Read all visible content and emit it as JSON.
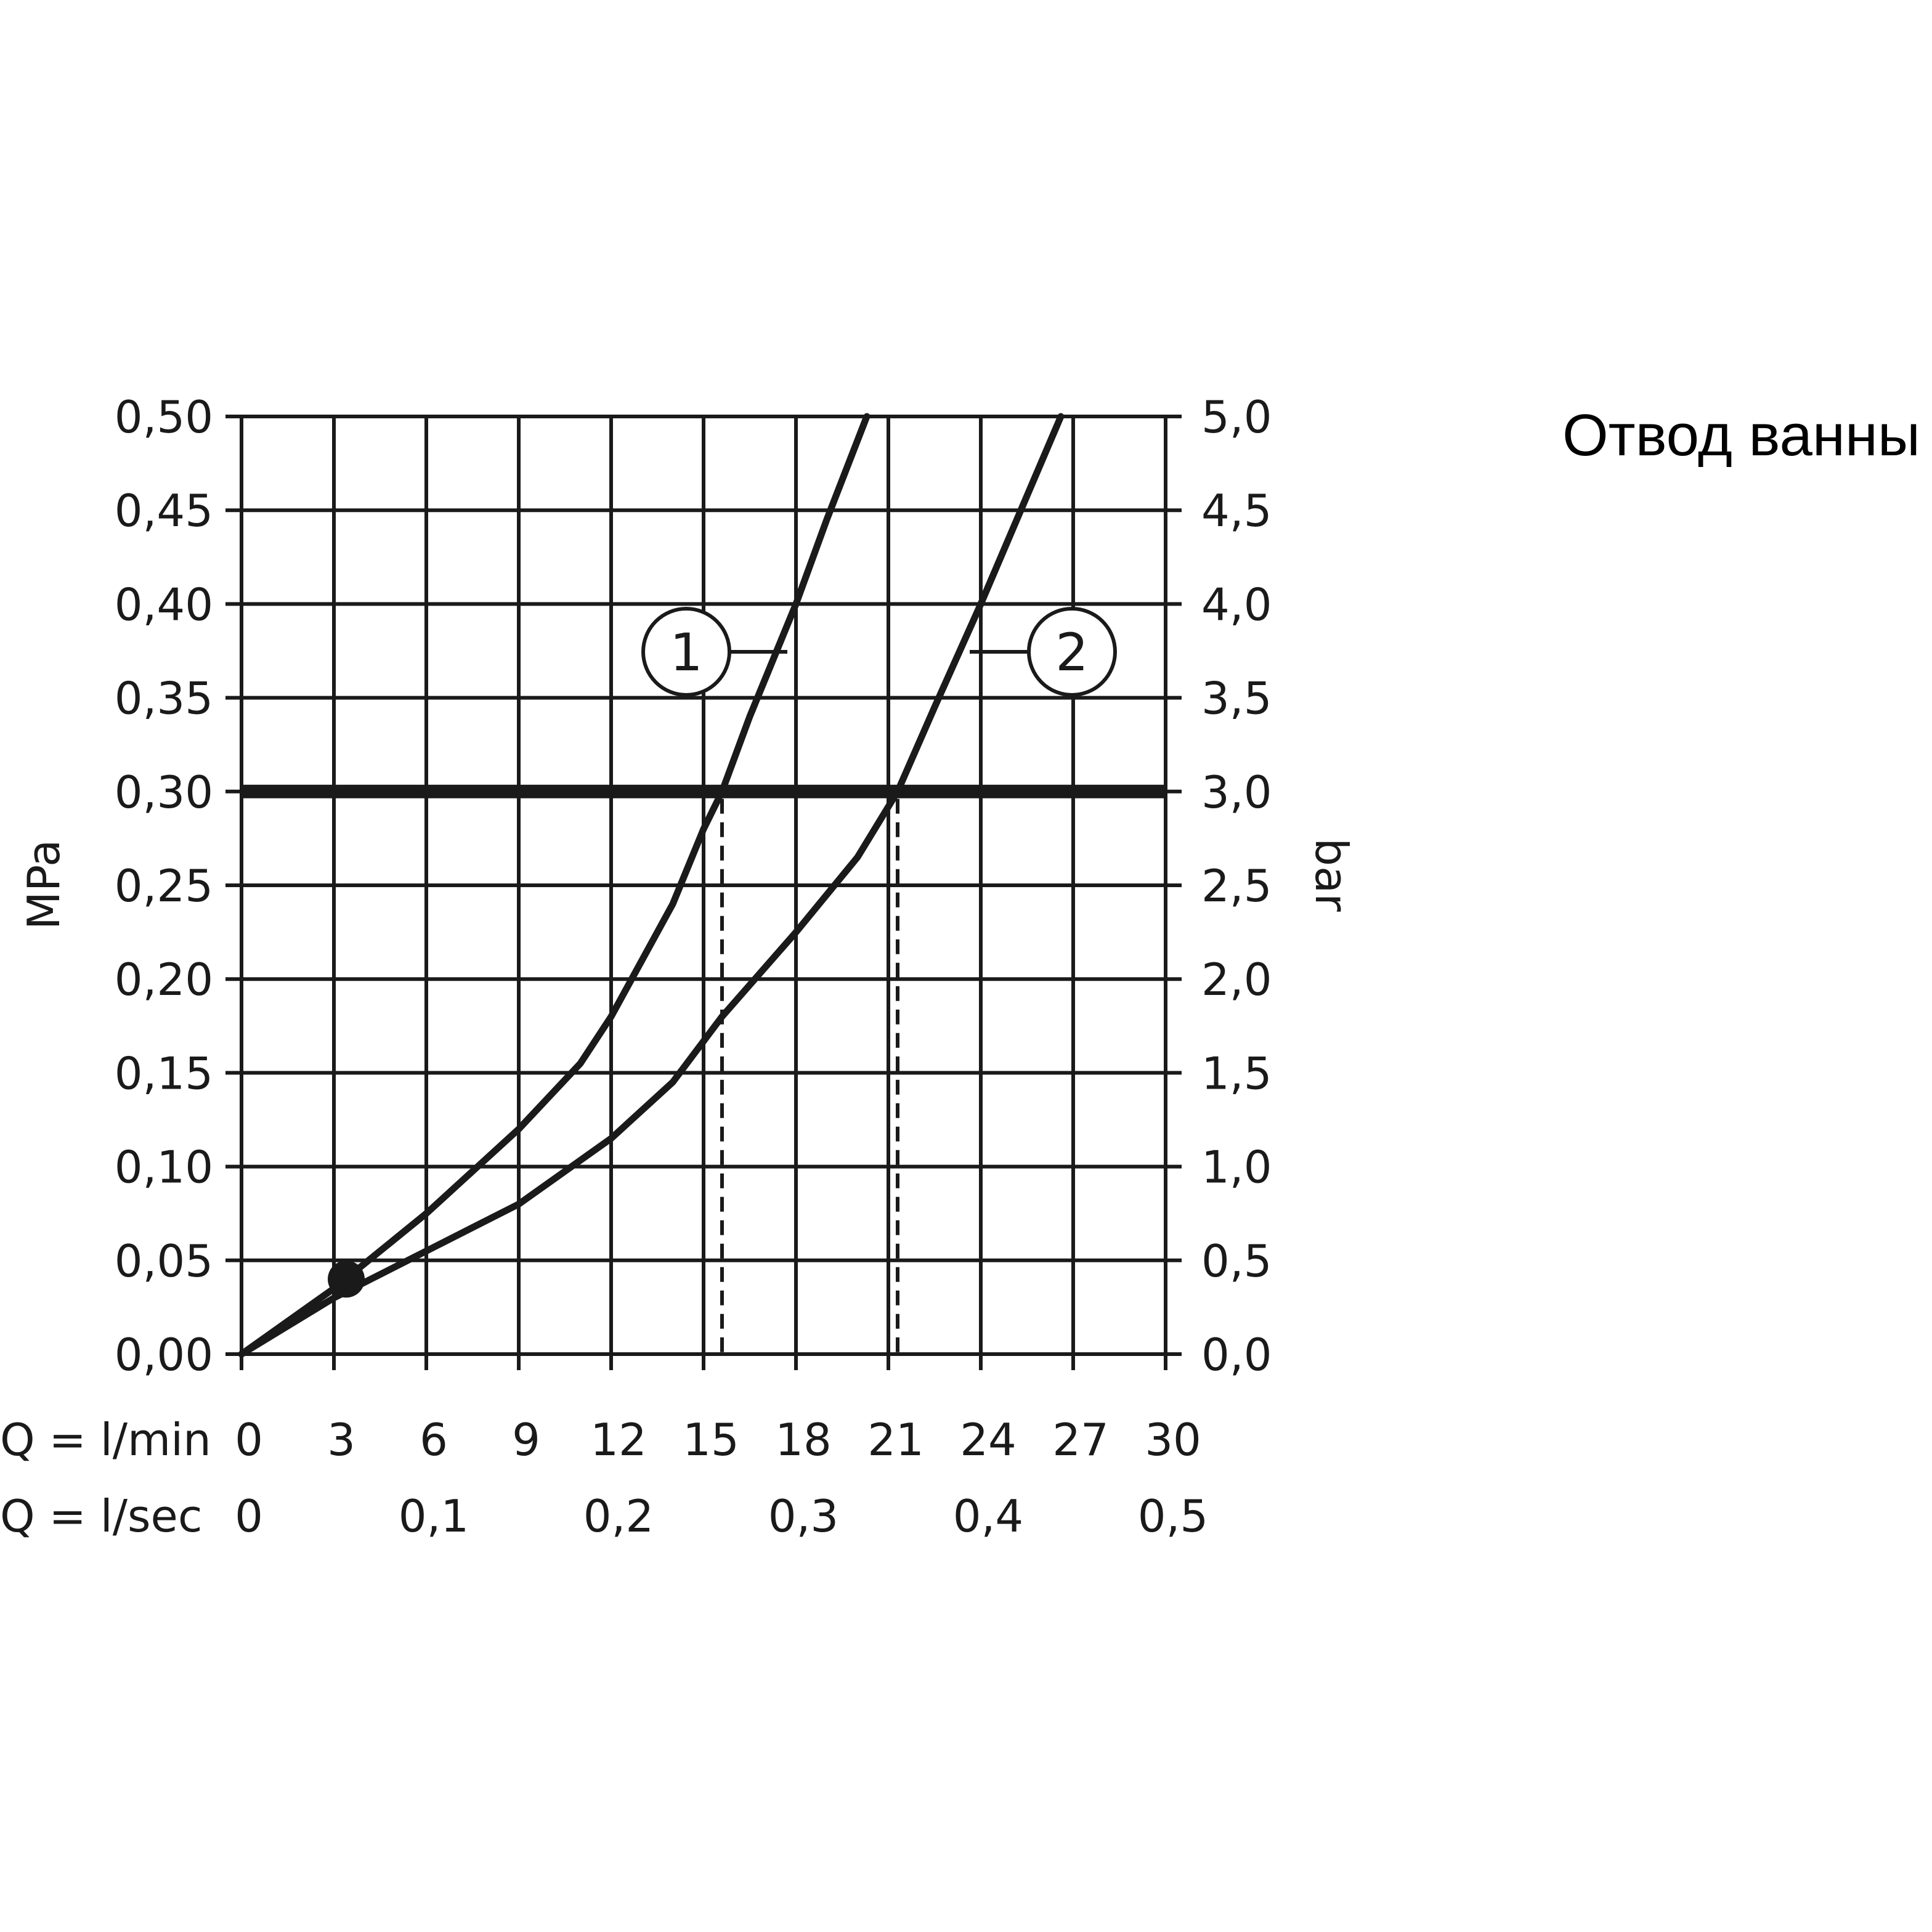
{
  "title": "Отвод ванны",
  "chart_data": {
    "type": "line",
    "left_axis": {
      "label": "MPa",
      "range": [
        0,
        0.5
      ],
      "ticks": [
        0,
        0.05,
        0.1,
        0.15,
        0.2,
        0.25,
        0.3,
        0.35,
        0.4,
        0.45,
        0.5
      ],
      "tick_labels": [
        "0,00",
        "0,05",
        "0,10",
        "0,15",
        "0,20",
        "0,25",
        "0,30",
        "0,35",
        "0,40",
        "0,45",
        "0,50"
      ]
    },
    "right_axis": {
      "label": "bar",
      "range": [
        0,
        5
      ],
      "tick_labels": [
        "0,0",
        "0,5",
        "1,0",
        "1,5",
        "2,0",
        "2,5",
        "3,0",
        "3,5",
        "4,0",
        "4,5",
        "5,0"
      ]
    },
    "x_axis": {
      "range": [
        0,
        30
      ],
      "row1_label": "Q = l/min",
      "row1_ticks": [
        0,
        3,
        6,
        9,
        12,
        15,
        18,
        21,
        24,
        27,
        30
      ],
      "row1_tick_labels": [
        "0",
        "3",
        "6",
        "9",
        "12",
        "15",
        "18",
        "21",
        "24",
        "27",
        "30"
      ],
      "row2_label": "Q = l/sec",
      "row2_ticks": [
        0,
        6,
        12,
        18,
        24,
        30
      ],
      "row2_tick_labels": [
        "0",
        "0,1",
        "0,2",
        "0,3",
        "0,4",
        "0,5"
      ]
    },
    "grid": true,
    "series": [
      {
        "marker": "1",
        "color": "#1a1a1a",
        "x": [
          0,
          3,
          6,
          9,
          11,
          12,
          14,
          15,
          15.6,
          16.5,
          18,
          19,
          20.3
        ],
        "y": [
          0,
          0.035,
          0.075,
          0.12,
          0.155,
          0.18,
          0.24,
          0.28,
          0.3,
          0.34,
          0.4,
          0.445,
          0.5
        ]
      },
      {
        "marker": "2",
        "color": "#1a1a1a",
        "x": [
          0,
          3,
          6,
          9,
          12,
          14,
          15.6,
          18,
          20,
          21.3,
          22.5,
          24,
          26.6
        ],
        "y": [
          0,
          0.03,
          0.055,
          0.08,
          0.115,
          0.145,
          0.18,
          0.225,
          0.265,
          0.3,
          0.345,
          0.4,
          0.5
        ]
      }
    ],
    "reference_line": {
      "y": 0.3,
      "color": "#1a1a1a"
    },
    "dashed_guides": [
      {
        "x": 15.6,
        "y": 0.3
      },
      {
        "x": 21.3,
        "y": 0.3
      }
    ],
    "min_point": {
      "x": 3.4,
      "y": 0.04
    }
  }
}
